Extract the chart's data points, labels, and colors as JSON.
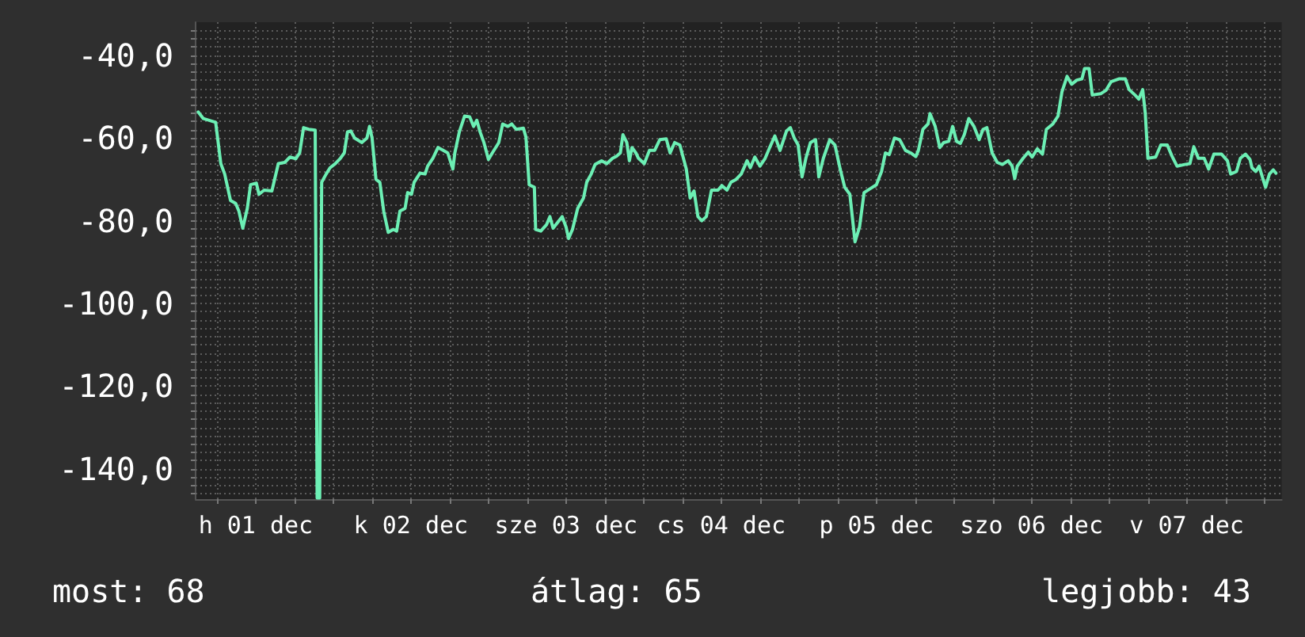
{
  "chart_data": {
    "type": "line",
    "color": "#6cefb4",
    "grid": true,
    "annotations": [
      "most: 68",
      "átlag: 65",
      "legjobb: 43"
    ],
    "xlim": [
      "--12-01T02:42",
      "--12-08T02:42"
    ],
    "xticks": [
      {
        "value": "--12-01T06:00",
        "label": null
      },
      {
        "value": "--12-01T12:00",
        "label": "h 01 dec"
      },
      {
        "value": "--12-01T18:00",
        "label": null
      },
      {
        "value": "--12-02T00:00",
        "label": null
      },
      {
        "value": "--12-02T06:00",
        "label": null
      },
      {
        "value": "--12-02T12:00",
        "label": "k 02 dec"
      },
      {
        "value": "--12-02T18:00",
        "label": null
      },
      {
        "value": "--12-03T00:00",
        "label": null
      },
      {
        "value": "--12-03T06:00",
        "label": null
      },
      {
        "value": "--12-03T12:00",
        "label": "sze 03 dec"
      },
      {
        "value": "--12-03T18:00",
        "label": null
      },
      {
        "value": "--12-04T00:00",
        "label": null
      },
      {
        "value": "--12-04T06:00",
        "label": null
      },
      {
        "value": "--12-04T12:00",
        "label": "cs 04 dec"
      },
      {
        "value": "--12-04T18:00",
        "label": null
      },
      {
        "value": "--12-05T00:00",
        "label": null
      },
      {
        "value": "--12-05T06:00",
        "label": null
      },
      {
        "value": "--12-05T12:00",
        "label": "p 05 dec"
      },
      {
        "value": "--12-05T18:00",
        "label": null
      },
      {
        "value": "--12-06T00:00",
        "label": null
      },
      {
        "value": "--12-06T06:00",
        "label": null
      },
      {
        "value": "--12-06T12:00",
        "label": "szo 06 dec"
      },
      {
        "value": "--12-06T18:00",
        "label": null
      },
      {
        "value": "--12-07T00:00",
        "label": null
      },
      {
        "value": "--12-07T06:00",
        "label": null
      },
      {
        "value": "--12-07T12:00",
        "label": "v 07 dec"
      },
      {
        "value": "--12-07T18:00",
        "label": null
      },
      {
        "value": "--12-08T00:00",
        "label": null
      }
    ],
    "ylim": [
      -147.3,
      -32.0
    ],
    "yticks": [
      {
        "value": -146,
        "label": null
      },
      {
        "value": -144,
        "label": null
      },
      {
        "value": -142,
        "label": null
      },
      {
        "value": -140,
        "label": "-140,0"
      },
      {
        "value": -138,
        "label": null
      },
      {
        "value": -136,
        "label": null
      },
      {
        "value": -134,
        "label": null
      },
      {
        "value": -132,
        "label": null
      },
      {
        "value": -130,
        "label": null
      },
      {
        "value": -128,
        "label": null
      },
      {
        "value": -126,
        "label": null
      },
      {
        "value": -124,
        "label": null
      },
      {
        "value": -122,
        "label": null
      },
      {
        "value": -120,
        "label": "-120,0"
      },
      {
        "value": -118,
        "label": null
      },
      {
        "value": -116,
        "label": null
      },
      {
        "value": -114,
        "label": null
      },
      {
        "value": -112,
        "label": null
      },
      {
        "value": -110,
        "label": null
      },
      {
        "value": -108,
        "label": null
      },
      {
        "value": -106,
        "label": null
      },
      {
        "value": -104,
        "label": null
      },
      {
        "value": -102,
        "label": null
      },
      {
        "value": -100,
        "label": "-100,0"
      },
      {
        "value": -98,
        "label": null
      },
      {
        "value": -96,
        "label": null
      },
      {
        "value": -94,
        "label": null
      },
      {
        "value": -92,
        "label": null
      },
      {
        "value": -90,
        "label": null
      },
      {
        "value": -88,
        "label": null
      },
      {
        "value": -86,
        "label": null
      },
      {
        "value": -84,
        "label": null
      },
      {
        "value": -82,
        "label": null
      },
      {
        "value": -80,
        "label": "-80,0"
      },
      {
        "value": -78,
        "label": null
      },
      {
        "value": -76,
        "label": null
      },
      {
        "value": -74,
        "label": null
      },
      {
        "value": -72,
        "label": null
      },
      {
        "value": -70,
        "label": null
      },
      {
        "value": -68,
        "label": null
      },
      {
        "value": -66,
        "label": null
      },
      {
        "value": -64,
        "label": null
      },
      {
        "value": -62,
        "label": null
      },
      {
        "value": -60,
        "label": "-60,0"
      },
      {
        "value": -58,
        "label": null
      },
      {
        "value": -56,
        "label": null
      },
      {
        "value": -54,
        "label": null
      },
      {
        "value": -52,
        "label": null
      },
      {
        "value": -50,
        "label": null
      },
      {
        "value": -48,
        "label": null
      },
      {
        "value": -46,
        "label": null
      },
      {
        "value": -44,
        "label": null
      },
      {
        "value": -42,
        "label": null
      },
      {
        "value": -40,
        "label": "-40,0"
      },
      {
        "value": -38,
        "label": null
      },
      {
        "value": -36,
        "label": null
      },
      {
        "value": -34,
        "label": null
      }
    ],
    "x": [
      "--12-01T03:06",
      "--12-01T03:54",
      "--12-01T05:48",
      "--12-01T06:36",
      "--12-01T07:12",
      "--12-01T08:06",
      "--12-01T08:54",
      "--12-01T09:24",
      "--12-01T10:00",
      "--12-01T10:42",
      "--12-01T11:12",
      "--12-01T12:06",
      "--12-01T12:30",
      "--12-01T13:18",
      "--12-01T14:30",
      "--12-01T15:30",
      "--12-01T16:30",
      "--12-01T17:18",
      "--12-01T18:12",
      "--12-01T18:48",
      "--12-01T19:24",
      "--12-01T20:12",
      "--12-01T21:12",
      "--12-01T21:30",
      "--12-01T21:54",
      "--12-01T22:12",
      "--12-01T22:54",
      "--12-01T23:30",
      "--12-02T00:18",
      "--12-02T01:06",
      "--12-02T01:42",
      "--12-02T02:12",
      "--12-02T02:42",
      "--12-02T03:18",
      "--12-02T04:24",
      "--12-02T05:12",
      "--12-02T05:36",
      "--12-02T06:00",
      "--12-02T06:36",
      "--12-02T07:12",
      "--12-02T07:48",
      "--12-02T08:30",
      "--12-02T09:18",
      "--12-02T09:48",
      "--12-02T10:18",
      "--12-02T11:06",
      "--12-02T11:30",
      "--12-02T12:06",
      "--12-02T12:30",
      "--12-02T13:24",
      "--12-02T14:12",
      "--12-02T14:36",
      "--12-02T15:24",
      "--12-02T16:12",
      "--12-02T17:00",
      "--12-02T17:42",
      "--12-02T18:30",
      "--12-02T18:48",
      "--12-02T19:30",
      "--12-02T20:18",
      "--12-02T21:06",
      "--12-02T21:42",
      "--12-02T22:12",
      "--12-02T22:42",
      "--12-02T23:18",
      "--12-03T00:00",
      "--12-03T00:36",
      "--12-03T01:36",
      "--12-03T02:12",
      "--12-03T03:00",
      "--12-03T03:36",
      "--12-03T04:18",
      "--12-03T05:24",
      "--12-03T05:48",
      "--12-03T06:18",
      "--12-03T07:06",
      "--12-03T07:18",
      "--12-03T08:06",
      "--12-03T09:00",
      "--12-03T09:30",
      "--12-03T10:00",
      "--12-03T10:48",
      "--12-03T11:24",
      "--12-03T12:00",
      "--12-03T12:24",
      "--12-03T13:00",
      "--12-03T13:48",
      "--12-03T14:42",
      "--12-03T15:12",
      "--12-03T15:54",
      "--12-03T16:30",
      "--12-03T17:30",
      "--12-03T18:18",
      "--12-03T19:12",
      "--12-03T19:48",
      "--12-03T20:24",
      "--12-03T20:48",
      "--12-03T21:24",
      "--12-03T21:48",
      "--12-03T22:12",
      "--12-03T22:48",
      "--12-03T23:12",
      "--12-04T00:06",
      "--12-04T00:54",
      "--12-04T01:42",
      "--12-04T02:30",
      "--12-04T03:30",
      "--12-04T04:06",
      "--12-04T04:48",
      "--12-04T05:36",
      "--12-04T06:36",
      "--12-04T07:12",
      "--12-04T07:48",
      "--12-04T08:24",
      "--12-04T09:00",
      "--12-04T09:42",
      "--12-04T10:30",
      "--12-04T11:30",
      "--12-04T12:06",
      "--12-04T12:54",
      "--12-04T13:30",
      "--12-04T14:18",
      "--12-04T15:06",
      "--12-04T16:00",
      "--12-04T16:30",
      "--12-04T17:12",
      "--12-04T18:00",
      "--12-04T18:48",
      "--12-04T19:30",
      "--12-04T20:18",
      "--12-04T21:06",
      "--12-04T22:06",
      "--12-04T22:42",
      "--12-04T23:18",
      "--12-04T23:54",
      "--12-05T00:30",
      "--12-05T01:06",
      "--12-05T01:48",
      "--12-05T02:36",
      "--12-05T03:06",
      "--12-05T03:48",
      "--12-05T04:48",
      "--12-05T05:36",
      "--12-05T06:24",
      "--12-05T07:06",
      "--12-05T07:54",
      "--12-05T08:42",
      "--12-05T09:24",
      "--12-05T10:06",
      "--12-05T11:00",
      "--12-05T12:00",
      "--12-05T12:48",
      "--12-05T13:24",
      "--12-05T14:00",
      "--12-05T14:48",
      "--12-05T15:36",
      "--12-05T16:30",
      "--12-05T17:18",
      "--12-05T18:06",
      "--12-05T18:30",
      "--12-05T19:12",
      "--12-05T20:00",
      "--12-05T20:18",
      "--12-05T21:06",
      "--12-05T21:48",
      "--12-05T22:24",
      "--12-05T23:12",
      "--12-05T23:48",
      "--12-06T00:24",
      "--12-06T01:00",
      "--12-06T01:36",
      "--12-06T02:18",
      "--12-06T03:06",
      "--12-06T03:54",
      "--12-06T04:30",
      "--12-06T05:06",
      "--12-06T05:54",
      "--12-06T06:42",
      "--12-06T07:30",
      "--12-06T08:24",
      "--12-06T09:00",
      "--12-06T09:24",
      "--12-06T09:48",
      "--12-06T10:42",
      "--12-06T11:30",
      "--12-06T12:06",
      "--12-06T12:54",
      "--12-06T13:42",
      "--12-06T14:18",
      "--12-06T15:18",
      "--12-06T16:06",
      "--12-06T16:42",
      "--12-06T17:30",
      "--12-06T18:12",
      "--12-06T19:00",
      "--12-06T19:48",
      "--12-06T20:12",
      "--12-06T20:54",
      "--12-06T21:24",
      "--12-06T22:42",
      "--12-06T23:30",
      "--12-07T00:18",
      "--12-07T01:30",
      "--12-07T02:30",
      "--12-07T03:06",
      "--12-07T04:00",
      "--12-07T04:36",
      "--12-07T05:12",
      "--12-07T05:36",
      "--12-07T06:00",
      "--12-07T07:12",
      "--12-07T08:00",
      "--12-07T09:00",
      "--12-07T09:42",
      "--12-07T10:30",
      "--12-07T11:42",
      "--12-07T12:30",
      "--12-07T13:06",
      "--12-07T13:48",
      "--12-07T14:42",
      "--12-07T15:24",
      "--12-07T16:12",
      "--12-07T17:24",
      "--12-07T18:18",
      "--12-07T18:48",
      "--12-07T19:42",
      "--12-07T20:18",
      "--12-07T21:06",
      "--12-07T21:48",
      "--12-07T22:06",
      "--12-07T22:42",
      "--12-07T23:12",
      "--12-07T23:42",
      "--12-08T00:12",
      "--12-08T00:48",
      "--12-08T01:24",
      "--12-08T01:48"
    ],
    "values": [
      -53.7,
      -55.3,
      -56.2,
      -66.2,
      -68.7,
      -75.1,
      -75.8,
      -77.7,
      -81.8,
      -77.0,
      -71.3,
      -70.9,
      -73.6,
      -72.6,
      -72.8,
      -66.2,
      -65.9,
      -64.6,
      -65.0,
      -63.6,
      -57.5,
      -57.9,
      -58.1,
      -147,
      -147,
      -70.7,
      -68.7,
      -67.2,
      -66.2,
      -64.9,
      -63.6,
      -58.5,
      -58.3,
      -60.0,
      -61.1,
      -60.0,
      -57.2,
      -60.0,
      -70.0,
      -70.7,
      -77.7,
      -82.8,
      -82.1,
      -82.5,
      -77.7,
      -77.0,
      -73.2,
      -73.6,
      -70.7,
      -68.5,
      -68.7,
      -66.8,
      -64.9,
      -62.3,
      -63.0,
      -63.6,
      -67.5,
      -63.6,
      -58.5,
      -54.7,
      -54.9,
      -57.2,
      -55.7,
      -58.5,
      -61.1,
      -65.2,
      -63.6,
      -61.1,
      -56.6,
      -57.2,
      -56.6,
      -57.9,
      -57.6,
      -59.8,
      -71.3,
      -71.9,
      -82.1,
      -82.5,
      -80.9,
      -79.0,
      -81.8,
      -80.2,
      -79.0,
      -81.5,
      -84.3,
      -82.1,
      -77.0,
      -74.5,
      -70.7,
      -68.7,
      -66.4,
      -65.5,
      -66.2,
      -64.9,
      -64.4,
      -63.6,
      -59.2,
      -61.1,
      -65.5,
      -62.3,
      -63.6,
      -64.9,
      -66.2,
      -63.0,
      -63.0,
      -60.4,
      -60.2,
      -63.6,
      -61.1,
      -61.7,
      -67.5,
      -74.5,
      -72.8,
      -79.0,
      -80.0,
      -79.0,
      -72.6,
      -72.6,
      -71.5,
      -72.6,
      -70.7,
      -70.0,
      -68.7,
      -65.5,
      -67.2,
      -64.6,
      -66.8,
      -64.9,
      -62.3,
      -59.5,
      -63.0,
      -58.3,
      -57.5,
      -60.0,
      -61.7,
      -69.4,
      -64.9,
      -61.1,
      -60.4,
      -69.4,
      -64.9,
      -60.4,
      -61.7,
      -67.5,
      -71.9,
      -73.6,
      -85.1,
      -81.5,
      -73.2,
      -72.3,
      -71.3,
      -68.1,
      -63.6,
      -64.0,
      -60.0,
      -60.4,
      -63.0,
      -63.6,
      -64.5,
      -63.0,
      -57.9,
      -56.6,
      -54.1,
      -57.2,
      -62.3,
      -61.1,
      -60.8,
      -57.2,
      -60.8,
      -61.3,
      -59.2,
      -55.3,
      -57.2,
      -60.4,
      -57.9,
      -57.5,
      -63.6,
      -65.9,
      -66.4,
      -65.5,
      -66.8,
      -69.8,
      -66.8,
      -64.9,
      -63.4,
      -64.6,
      -62.6,
      -63.9,
      -57.9,
      -56.6,
      -54.7,
      -48.9,
      -45.1,
      -47.0,
      -46.0,
      -45.7,
      -43.2,
      -43.2,
      -49.6,
      -49.3,
      -48.5,
      -46.4,
      -45.7,
      -45.7,
      -48.3,
      -49.6,
      -50.6,
      -48.3,
      -54.1,
      -64.9,
      -64.6,
      -61.7,
      -61.7,
      -64.3,
      -66.8,
      -66.4,
      -66.2,
      -62.1,
      -64.9,
      -64.9,
      -67.5,
      -63.9,
      -63.9,
      -65.5,
      -68.7,
      -68.1,
      -64.9,
      -63.9,
      -65.2,
      -67.2,
      -68.1,
      -66.8,
      -69.4,
      -71.9,
      -68.7,
      -67.7,
      -68.5
    ]
  }
}
